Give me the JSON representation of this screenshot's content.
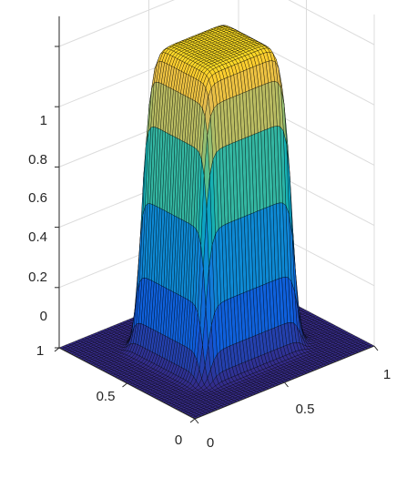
{
  "chart_data": {
    "type": "surface",
    "title": "",
    "xlabel": "",
    "ylabel": "",
    "zlabel": "",
    "xlim": [
      0,
      1
    ],
    "ylim": [
      0,
      1
    ],
    "zlim": [
      0,
      1.1
    ],
    "x_ticks": [
      "0",
      "0.5",
      "1"
    ],
    "y_ticks": [
      "0",
      "0.5",
      "1"
    ],
    "z_ticks": [
      "0",
      "0.2",
      "0.4",
      "0.6",
      "0.8",
      "1"
    ],
    "grid": true,
    "colormap": "parula",
    "edge_color": "#000000",
    "description_values": {
      "plateau_height": 1.0,
      "plateau_x_range": [
        0.25,
        0.75
      ],
      "plateau_y_range": [
        0.25,
        0.75
      ],
      "base_height": 0.0,
      "corner_peak_height": 1.05
    }
  },
  "colors": {
    "background": "#ffffff",
    "axis": "#262626",
    "grid": "#dcdcdc"
  }
}
